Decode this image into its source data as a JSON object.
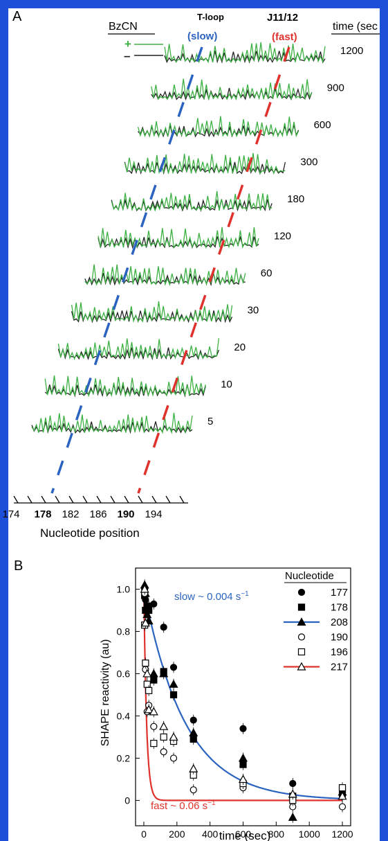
{
  "chart_data": [
    {
      "type": "line",
      "panel_label": "A",
      "legend": {
        "title": "BzCN",
        "plus": "+",
        "minus": "–"
      },
      "annotations": {
        "t_loop": "T-loop",
        "t_loop_rate": "(slow)",
        "j1112": "J11/12",
        "j1112_rate": "(fast)"
      },
      "time_header": "time (sec",
      "times": [
        "1200",
        "900",
        "600",
        "300",
        "180",
        "120",
        "60",
        "30",
        "20",
        "10",
        "5"
      ],
      "xlabel": "Nucleotide position",
      "xticks": [
        "174",
        "178",
        "182",
        "186",
        "190",
        "194"
      ],
      "bold_ticks": [
        "178",
        "190"
      ],
      "colors": {
        "plus": "#3cb043",
        "minus": "#222222",
        "slow": "#2b63c0",
        "fast": "#e0322d"
      }
    },
    {
      "type": "scatter",
      "panel_label": "B",
      "xlabel": "time (sec)",
      "ylabel": "SHAPE reactivity (au)",
      "xlim": [
        -50,
        1250
      ],
      "ylim": [
        -0.12,
        1.1
      ],
      "xticks": [
        0,
        200,
        400,
        600,
        800,
        1000,
        1200
      ],
      "yticks": [
        "0",
        "0.2",
        "0.4",
        "0.6",
        "0.8",
        "1.0"
      ],
      "legend_title": "Nucleotide",
      "slow_label": "slow ~ 0.004 s",
      "fast_label": "fast ~ 0.06 s",
      "rate_unit_exp": "−1",
      "series": [
        {
          "name": "177",
          "marker": "circle-filled",
          "x": [
            5,
            10,
            20,
            30,
            60,
            120,
            180,
            300,
            600,
            900,
            1200
          ],
          "y": [
            1.0,
            0.95,
            0.9,
            0.92,
            0.93,
            0.82,
            0.63,
            0.38,
            0.34,
            0.08,
            0.02
          ]
        },
        {
          "name": "178",
          "marker": "square-filled",
          "x": [
            5,
            10,
            20,
            30,
            60,
            120,
            180,
            300,
            600,
            900,
            1200
          ],
          "y": [
            0.97,
            0.9,
            0.92,
            0.9,
            0.57,
            0.61,
            0.5,
            0.29,
            0.17,
            0.02,
            0.05
          ]
        },
        {
          "name": "208",
          "marker": "triangle-filled",
          "fit": "slow",
          "x": [
            5,
            10,
            20,
            30,
            60,
            120,
            180,
            300,
            600,
            900,
            1200
          ],
          "y": [
            1.02,
            0.98,
            0.88,
            0.85,
            0.6,
            0.6,
            0.55,
            0.32,
            0.2,
            -0.08,
            0.04
          ]
        },
        {
          "name": "190",
          "marker": "circle-open",
          "x": [
            5,
            10,
            20,
            30,
            60,
            120,
            180,
            300,
            600,
            900,
            1200
          ],
          "y": [
            0.98,
            0.62,
            0.42,
            0.45,
            0.35,
            0.23,
            0.2,
            0.05,
            0.06,
            -0.03,
            -0.03
          ]
        },
        {
          "name": "196",
          "marker": "square-open",
          "x": [
            5,
            10,
            20,
            30,
            60,
            120,
            180,
            300,
            600,
            900,
            1200
          ],
          "y": [
            0.83,
            0.65,
            0.55,
            0.52,
            0.27,
            0.3,
            0.28,
            0.12,
            0.08,
            0.0,
            0.06
          ]
        },
        {
          "name": "217",
          "marker": "triangle-open",
          "fit": "fast",
          "x": [
            5,
            10,
            20,
            30,
            60,
            120,
            180,
            300,
            600,
            900,
            1200
          ],
          "y": [
            1.0,
            0.84,
            0.6,
            0.43,
            0.42,
            0.35,
            0.3,
            0.15,
            0.1,
            0.03,
            0.02
          ]
        }
      ],
      "fits": [
        {
          "name": "slow",
          "rate": 0.004,
          "color": "#2b63c0"
        },
        {
          "name": "fast",
          "rate": 0.06,
          "color": "#e0322d"
        }
      ]
    }
  ]
}
